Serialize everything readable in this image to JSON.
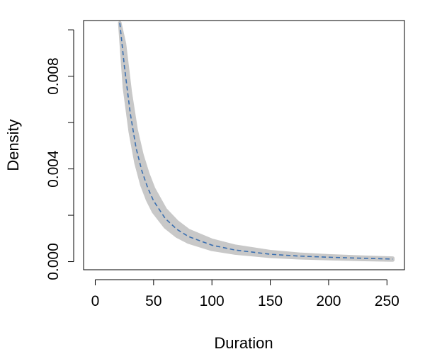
{
  "chart_data": {
    "type": "line",
    "title": "",
    "xlabel": "Duration",
    "ylabel": "Density",
    "xlim": [
      -10,
      265
    ],
    "ylim": [
      -0.00035,
      0.0104
    ],
    "x_ticks": [
      0,
      50,
      100,
      150,
      200,
      250
    ],
    "y_ticks": [
      0,
      0.002,
      0.004,
      0.006,
      0.008,
      0.01
    ],
    "y_tick_labels": [
      {
        "value": 0,
        "label": "0.000"
      },
      {
        "value": 0.004,
        "label": "0.004"
      },
      {
        "value": 0.008,
        "label": "0.008"
      }
    ],
    "grid": false,
    "series": [
      {
        "style": "dashed",
        "color": "#3a6fb0",
        "x": [
          21,
          25,
          30,
          35,
          40,
          45,
          50,
          60,
          70,
          80,
          100,
          120,
          150,
          175,
          200,
          225,
          255
        ],
        "y": [
          0.0103,
          0.0084,
          0.0064,
          0.0049,
          0.0039,
          0.00318,
          0.00262,
          0.00186,
          0.00139,
          0.00108,
          0.00071,
          0.0005,
          0.00032,
          0.00024,
          0.00019,
          0.00015,
          0.00011
        ]
      }
    ],
    "band": {
      "color": "#c8c8c8",
      "x": [
        21,
        25,
        30,
        35,
        40,
        45,
        50,
        60,
        70,
        80,
        100,
        120,
        150,
        175,
        200,
        225,
        255
      ],
      "lower": [
        0.0103,
        0.0075,
        0.0056,
        0.00425,
        0.0033,
        0.00265,
        0.00215,
        0.0015,
        0.0011,
        0.00084,
        0.00053,
        0.00037,
        0.00023,
        0.00017,
        0.00013,
        0.0001,
        7e-05
      ],
      "upper": [
        0.0103,
        0.0094,
        0.0073,
        0.0057,
        0.0046,
        0.0038,
        0.00315,
        0.00225,
        0.00172,
        0.00134,
        0.00092,
        0.00066,
        0.00043,
        0.00032,
        0.00025,
        0.0002,
        0.00015
      ]
    }
  }
}
